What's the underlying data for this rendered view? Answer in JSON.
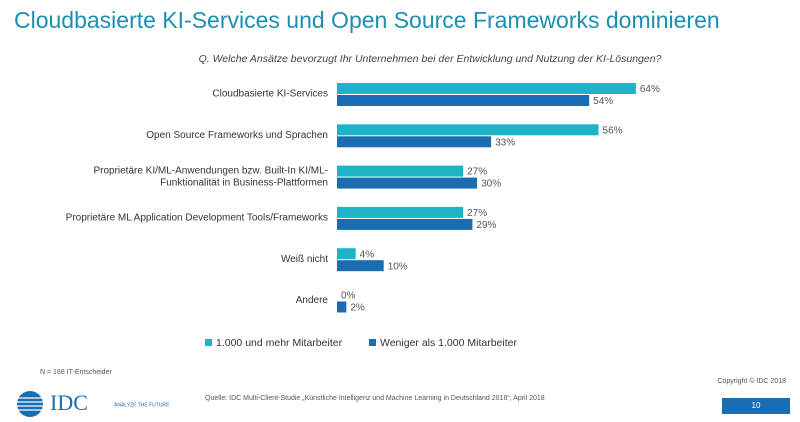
{
  "chart_data": {
    "type": "bar",
    "orientation": "horizontal",
    "title": "Cloudbasierte KI-Services und Open Source Frameworks dominieren",
    "subtitle": "Q. Welche Ansätze bevorzugt Ihr Unternehmen bei der Entwicklung und Nutzung der KI-Lösungen?",
    "categories": [
      "Cloudbasierte KI-Services",
      "Open Source Frameworks und Sprachen",
      "Proprietäre KI/ML-Anwendungen bzw. Built-In KI/ML-\nFunktionalität in Business-Plattformen",
      "Proprietäre ML Application Development Tools/Frameworks",
      "Weiß nicht",
      "Andere"
    ],
    "series": [
      {
        "name": "1.000 und mehr Mitarbeiter",
        "color": "#1fb3c8",
        "values": [
          64,
          56,
          27,
          27,
          4,
          0
        ],
        "value_labels": [
          "64%",
          "56%",
          "27%",
          "27%",
          "4%",
          "0%"
        ]
      },
      {
        "name": "Weniger als 1.000 Mitarbeiter",
        "color": "#1a6db3",
        "values": [
          54,
          33,
          30,
          29,
          10,
          2
        ],
        "value_labels": [
          "54%",
          "33%",
          "30%",
          "29%",
          "10%",
          "2%"
        ]
      }
    ]
  },
  "footer": {
    "sample": "N = 188 IT-Entscheider",
    "source": "Quelle: IDC Multi-Client-Studie „Künstliche Intelligenz und Machine Learning in Deutschland 2018“, April 2018",
    "copyright": "Copyright © IDC 2018",
    "page": "10",
    "logo": "IDC",
    "tagline": "ANALYZE THE FUTURE"
  }
}
